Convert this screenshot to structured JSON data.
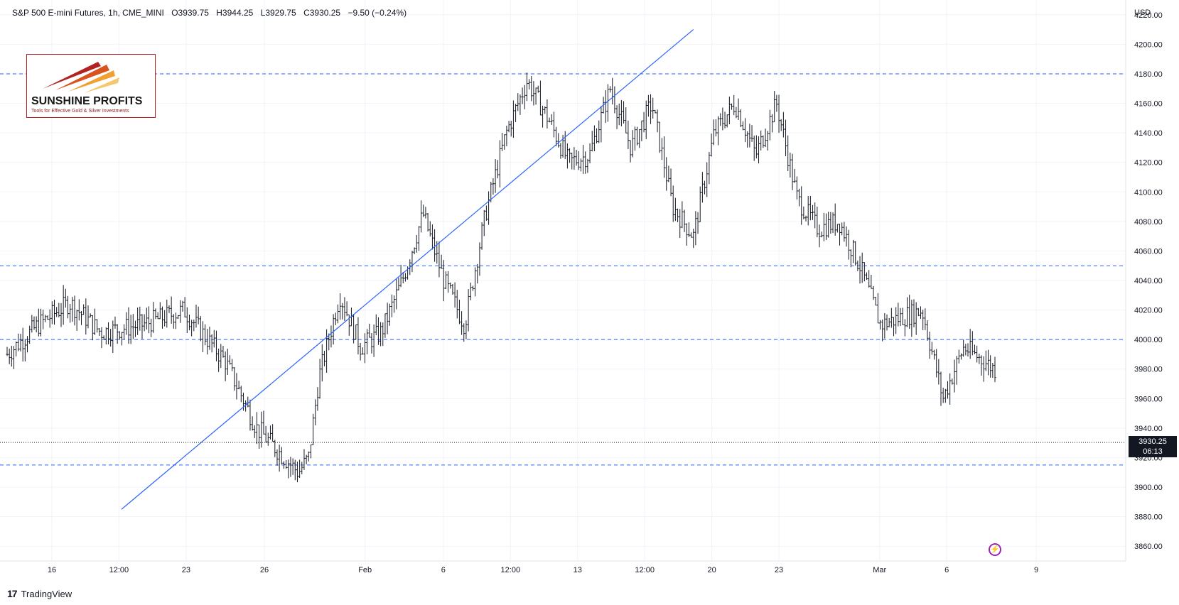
{
  "header": {
    "symbol": "S&P 500 E-mini Futures, 1h, CME_MINI",
    "open": "O3939.75",
    "high": "H3944.25",
    "low": "L3929.75",
    "close": "C3930.25",
    "change": "−9.50 (−0.24%)"
  },
  "axis": {
    "currency": "USD",
    "y_ticks": [
      "4220.00",
      "4200.00",
      "4180.00",
      "4160.00",
      "4140.00",
      "4120.00",
      "4100.00",
      "4080.00",
      "4060.00",
      "4040.00",
      "4020.00",
      "4000.00",
      "3980.00",
      "3960.00",
      "3940.00",
      "3920.00",
      "3900.00",
      "3880.00",
      "3860.00"
    ],
    "x_ticks": [
      "16",
      "12:00",
      "23",
      "26",
      "Feb",
      "6",
      "12:00",
      "13",
      "12:00",
      "20",
      "23",
      "Mar",
      "6",
      "9"
    ]
  },
  "price_tag": {
    "price": "3930.25",
    "countdown": "06:13"
  },
  "logo": {
    "name": "SUNSHINE PROFITS",
    "tagline": "Tools for Effective Gold & Silver Investments"
  },
  "footer": {
    "brand": "TradingView",
    "brand_mark": "17"
  },
  "colors": {
    "candles": "#131722",
    "levels": "#2962ff",
    "trendline": "#2962ff",
    "logo_red": "#b22222",
    "logo_orange": "#f0a030"
  },
  "chart_data": {
    "type": "line",
    "title": "S&P 500 E-mini Futures, 1h, CME_MINI",
    "ylabel": "USD",
    "ylim": [
      3850,
      4230
    ],
    "x_labels": [
      "16",
      "12:00",
      "23",
      "26",
      "Feb",
      "6",
      "12:00",
      "13",
      "12:00",
      "20",
      "23",
      "Mar",
      "6",
      "9"
    ],
    "series": [
      {
        "name": "S&P 500 E-mini Futures",
        "x": [
          0,
          0.03,
          0.06,
          0.09,
          0.13,
          0.17,
          0.21,
          0.24,
          0.28,
          0.29,
          0.3,
          0.32,
          0.34,
          0.36,
          0.38,
          0.4,
          0.42,
          0.44,
          0.46,
          0.48,
          0.5,
          0.52,
          0.54,
          0.56,
          0.58,
          0.6,
          0.62,
          0.64,
          0.66,
          0.68,
          0.7,
          0.72,
          0.74,
          0.76,
          0.78,
          0.8,
          0.82,
          0.84,
          0.86,
          0.88,
          0.9,
          0.92,
          0.95
        ],
        "values": [
          3990,
          4010,
          4025,
          4005,
          4010,
          4020,
          3985,
          3940,
          3910,
          3920,
          3975,
          4030,
          3995,
          4005,
          4040,
          4085,
          4040,
          4010,
          4085,
          4140,
          4175,
          4150,
          4120,
          4125,
          4170,
          4130,
          4160,
          4090,
          4070,
          4140,
          4160,
          4125,
          4160,
          4095,
          4075,
          4080,
          4050,
          4010,
          4015,
          4020,
          3960,
          3995,
          3980
        ]
      }
    ],
    "levels": [
      4180,
      4050,
      4000,
      3915
    ],
    "trendline": {
      "from": [
        0.11,
        3885
      ],
      "to": [
        0.66,
        4210
      ]
    },
    "last": 3930.25,
    "grid": true
  }
}
